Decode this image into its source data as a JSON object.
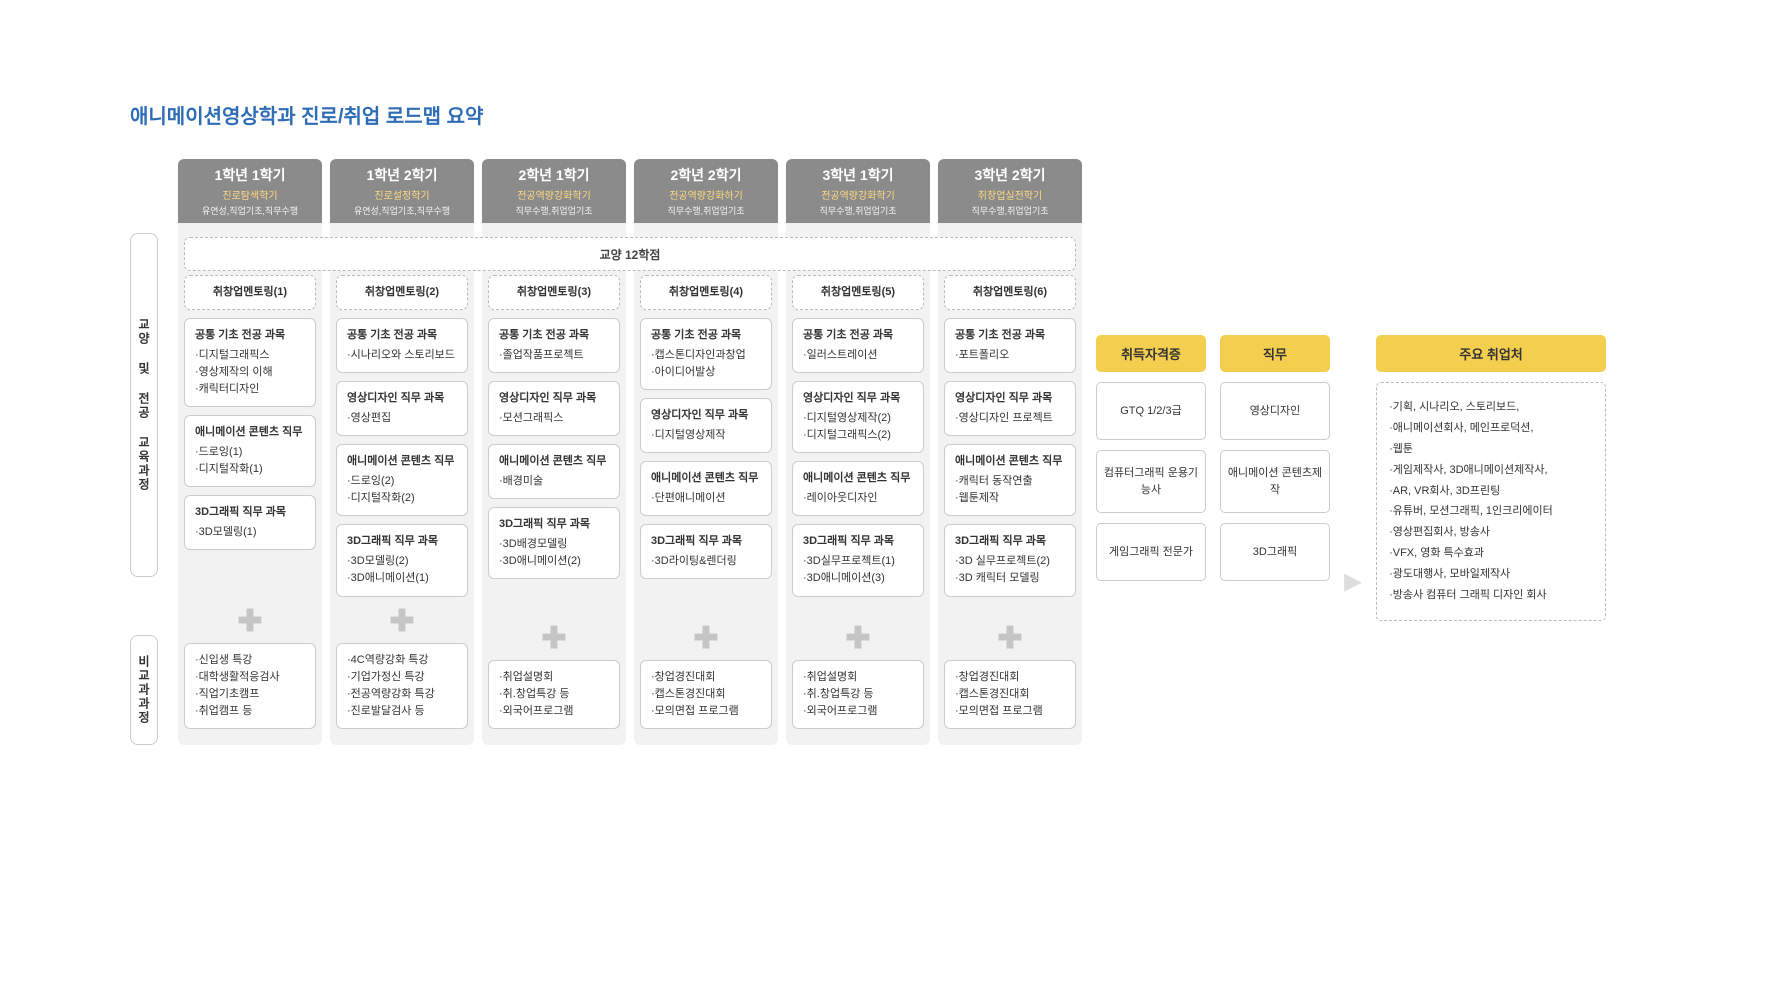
{
  "title": "애니메이션영상학과 진로/취업 로드맵 요약",
  "row_labels": {
    "top": "교양 및 전공 교육과정",
    "bottom": "비교과과정"
  },
  "credit_bar": "교양 12학점",
  "semesters": [
    {
      "h1": "1학년 1학기",
      "h2": "진로탐색학기",
      "h3": "유연성,직업기초,직무수행",
      "mentoring": "취창업멘토링(1)",
      "boxes": [
        {
          "t": "공통 기초 전공 과목",
          "i": [
            "디지털그래픽스",
            "영상제작의 이해",
            "캐릭터디자인"
          ]
        },
        {
          "t": "애니메이션 콘텐츠 직무",
          "i": [
            "드로잉(1)",
            "디지털작화(1)"
          ]
        },
        {
          "t": "3D그래픽  직무 과목",
          "i": [
            "3D모델링(1)"
          ]
        }
      ],
      "extra": [
        "신입생 특강",
        "대학생활적응검사",
        "직업기초캠프",
        "취업캠프 등"
      ]
    },
    {
      "h1": "1학년 2학기",
      "h2": "진로설정학기",
      "h3": "유연성,직업기초,직무수행",
      "mentoring": "취창업멘토링(2)",
      "boxes": [
        {
          "t": "공통 기초 전공 과목",
          "i": [
            "시나리오와 스토리보드"
          ]
        },
        {
          "t": "영상디자인 직무 과목",
          "i": [
            "영상편집"
          ]
        },
        {
          "t": "애니메이션 콘텐츠 직무",
          "i": [
            "드로잉(2)",
            "디지털작화(2)"
          ]
        },
        {
          "t": "3D그래픽  직무 과목",
          "i": [
            "3D모델링(2)",
            "3D애니메이션(1)"
          ]
        }
      ],
      "extra": [
        "4C역량강화 특강",
        "기업가정신 특강",
        "전공역량강화 특강",
        "진로발달검사 등"
      ]
    },
    {
      "h1": "2학년 1학기",
      "h2": "전공역량강화학기",
      "h3": "직무수행,취업업기초",
      "mentoring": "취창업멘토링(3)",
      "boxes": [
        {
          "t": "공통 기초 전공 과목",
          "i": [
            "졸업작품프로젝트"
          ]
        },
        {
          "t": "영상디자인 직무 과목",
          "i": [
            "모션그래픽스"
          ]
        },
        {
          "t": "애니메이션 콘텐츠 직무",
          "i": [
            "배경미술"
          ]
        },
        {
          "t": "3D그래픽  직무 과목",
          "i": [
            "3D배경모델링",
            "3D애니메이션(2)"
          ]
        }
      ],
      "extra": [
        "취업설명회",
        "취.창업특강 등",
        "외국어프로그램"
      ]
    },
    {
      "h1": "2학년 2학기",
      "h2": "전공역량강화하기",
      "h3": "직무수행,취업업기초",
      "mentoring": "취창업멘토링(4)",
      "boxes": [
        {
          "t": "공통 기초 전공 과목",
          "i": [
            "캡스톤디자인과창업",
            "아이디어발상"
          ]
        },
        {
          "t": "영상디자인 직무 과목",
          "i": [
            "디지털영상제작"
          ]
        },
        {
          "t": "애니메이션 콘텐츠 직무",
          "i": [
            "단편애니메이션"
          ]
        },
        {
          "t": "3D그래픽  직무 과목",
          "i": [
            "3D라이팅&렌더링"
          ]
        }
      ],
      "extra": [
        "창업경진대회",
        "캡스톤경진대회",
        "모의면접 프로그램"
      ]
    },
    {
      "h1": "3학년 1학기",
      "h2": "전공역량강화학기",
      "h3": "직무수행,취업업기초",
      "mentoring": "취창업멘토링(5)",
      "boxes": [
        {
          "t": "공통 기초 전공 과목",
          "i": [
            "일러스트레이션"
          ]
        },
        {
          "t": "영상디자인 직무 과목",
          "i": [
            "디지털영상제작(2)",
            "디지털그래픽스(2)"
          ]
        },
        {
          "t": "애니메이션 콘텐츠 직무",
          "i": [
            "레이아웃디자인"
          ]
        },
        {
          "t": "3D그래픽  직무 과목",
          "i": [
            "3D실무프로젝트(1)",
            "3D애니메이션(3)"
          ]
        }
      ],
      "extra": [
        "취업설명회",
        "취.창업특강 등",
        "외국어프로그램"
      ]
    },
    {
      "h1": "3학년 2학기",
      "h2": "취창업실전학기",
      "h3": "직무수행,취업업기초",
      "mentoring": "취창업멘토링(6)",
      "boxes": [
        {
          "t": "공통 기초 전공 과목",
          "i": [
            "포트폴리오"
          ]
        },
        {
          "t": "영상디자인 직무 과목",
          "i": [
            "영상디자인 프로젝트"
          ]
        },
        {
          "t": "애니메이션 콘텐츠 직무",
          "i": [
            "캐릭터 동작연출",
            "웹툰제작"
          ]
        },
        {
          "t": "3D그래픽  직무 과목",
          "i": [
            "3D 실무프로젝트(2)",
            "3D 캐릭터 모델링"
          ]
        }
      ],
      "extra": [
        "창업경진대회",
        "캡스톤경진대회",
        "모의면접 프로그램"
      ]
    }
  ],
  "right": {
    "cert_hd": "취득자격증",
    "job_hd": "직무",
    "certs": [
      "GTQ 1/2/3급",
      "컴퓨터그래픽 운용기능사",
      "게임그래픽 전문가"
    ],
    "jobs": [
      "영상디자인",
      "애니메이션 콘텐츠제작",
      "3D그래픽"
    ],
    "emp_hd": "주요 취업처",
    "emp": [
      "기획, 시나리오, 스토리보드,",
      "애니메이션회사, 메인프로덕션,",
      "웹툰",
      "게임제작사, 3D애니메이션제작사,",
      "AR, VR회사, 3D프린팅",
      "유튜버, 모션그래픽, 1인크리에이터",
      "영상편집회사, 방송사",
      "VFX, 영화 특수효과",
      "광도대행사, 모바일제작사",
      "방송사 컴퓨터 그래픽 디자인 회사"
    ]
  }
}
